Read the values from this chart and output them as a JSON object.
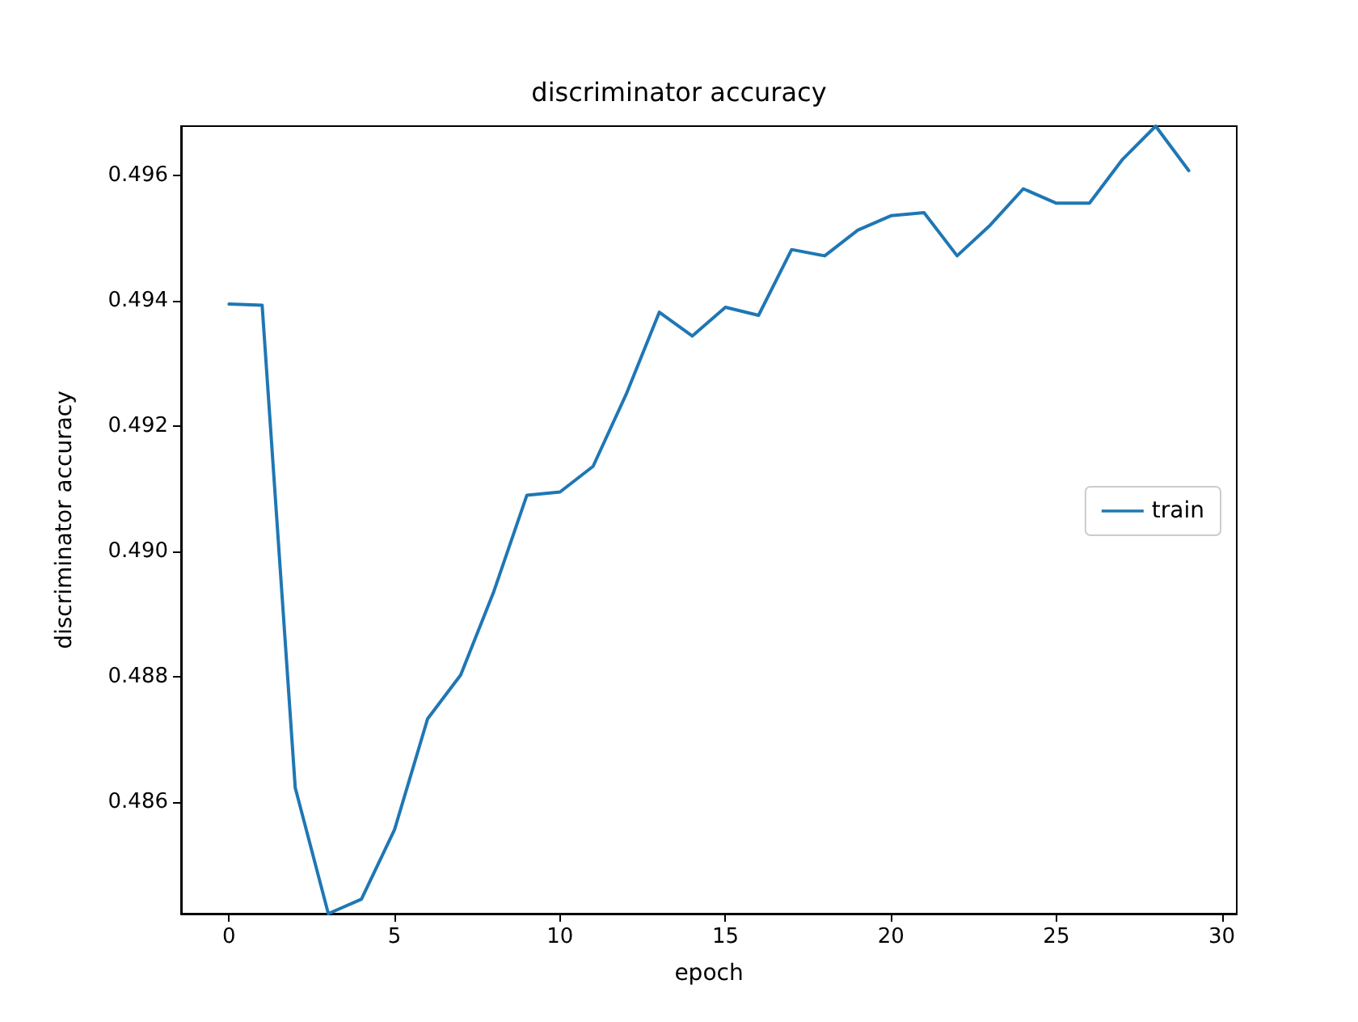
{
  "chart_data": {
    "type": "line",
    "title": "discriminator accuracy",
    "xlabel": "epoch",
    "ylabel": "discriminator accuracy",
    "x": [
      0,
      1,
      2,
      3,
      4,
      5,
      6,
      7,
      8,
      9,
      10,
      11,
      12,
      13,
      14,
      15,
      16,
      17,
      18,
      19,
      20,
      21,
      22,
      23,
      24,
      25,
      26,
      27,
      28,
      29
    ],
    "series": [
      {
        "name": "train",
        "color": "#1f77b4",
        "values": [
          0.49395,
          0.49393,
          0.48623,
          0.48422,
          0.48445,
          0.48556,
          0.48733,
          0.48803,
          0.48936,
          0.4909,
          0.49095,
          0.49136,
          0.49251,
          0.49382,
          0.49344,
          0.4939,
          0.49377,
          0.49482,
          0.49472,
          0.49513,
          0.49536,
          0.49541,
          0.49472,
          0.49521,
          0.49579,
          0.49556,
          0.49556,
          0.49626,
          0.49679,
          0.49608
        ]
      }
    ],
    "xlim": [
      -1.45,
      30.45
    ],
    "xticks": [
      0,
      5,
      10,
      15,
      20,
      25,
      30
    ],
    "ylim": [
      0.48422,
      0.49679
    ],
    "yticks": [
      0.486,
      0.488,
      {
        "value": 0.49,
        "label": "0.490"
      },
      0.492,
      0.494,
      0.496
    ],
    "legend": "right",
    "grid": false,
    "marker": "none",
    "line_style": "solid"
  }
}
